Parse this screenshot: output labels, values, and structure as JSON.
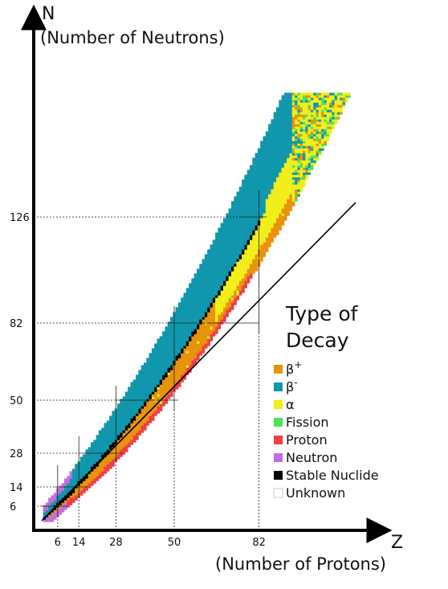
{
  "chart_data": {
    "type": "heatmap",
    "title": "",
    "y_axis": {
      "symbol": "N",
      "label": "(Number of Neutrons)",
      "ticks": [
        6,
        14,
        28,
        50,
        82,
        126
      ]
    },
    "x_axis": {
      "symbol": "Z",
      "label": "(Number of Protons)",
      "ticks": [
        6,
        14,
        28,
        50,
        82
      ]
    },
    "magic_numbers": {
      "protons": [
        6,
        14,
        28,
        50,
        82
      ],
      "neutrons": [
        6,
        14,
        28,
        50,
        82,
        126
      ]
    },
    "n_equals_z_line": true,
    "legend": {
      "title_line1": "Type of",
      "title_line2": "Decay",
      "placement": "right",
      "items": [
        {
          "key": "beta_plus",
          "label": "β",
          "sup": "+",
          "color": "#e8930c"
        },
        {
          "key": "beta_minus",
          "label": "β",
          "sup": "-",
          "color": "#1197ad"
        },
        {
          "key": "alpha",
          "label": "α",
          "sup": "",
          "color": "#f2ee1a"
        },
        {
          "key": "fission",
          "label": "Fission",
          "sup": "",
          "color": "#4fe05a"
        },
        {
          "key": "proton",
          "label": "Proton",
          "sup": "",
          "color": "#ef3d4a"
        },
        {
          "key": "neutron",
          "label": "Neutron",
          "sup": "",
          "color": "#c46ee0"
        },
        {
          "key": "stable",
          "label": "Stable Nuclide",
          "sup": "",
          "color": "#000000"
        },
        {
          "key": "unknown",
          "label": "Unknown",
          "sup": "",
          "color": "#ffffff"
        }
      ]
    },
    "z_max": 118,
    "n_max": 177
  }
}
